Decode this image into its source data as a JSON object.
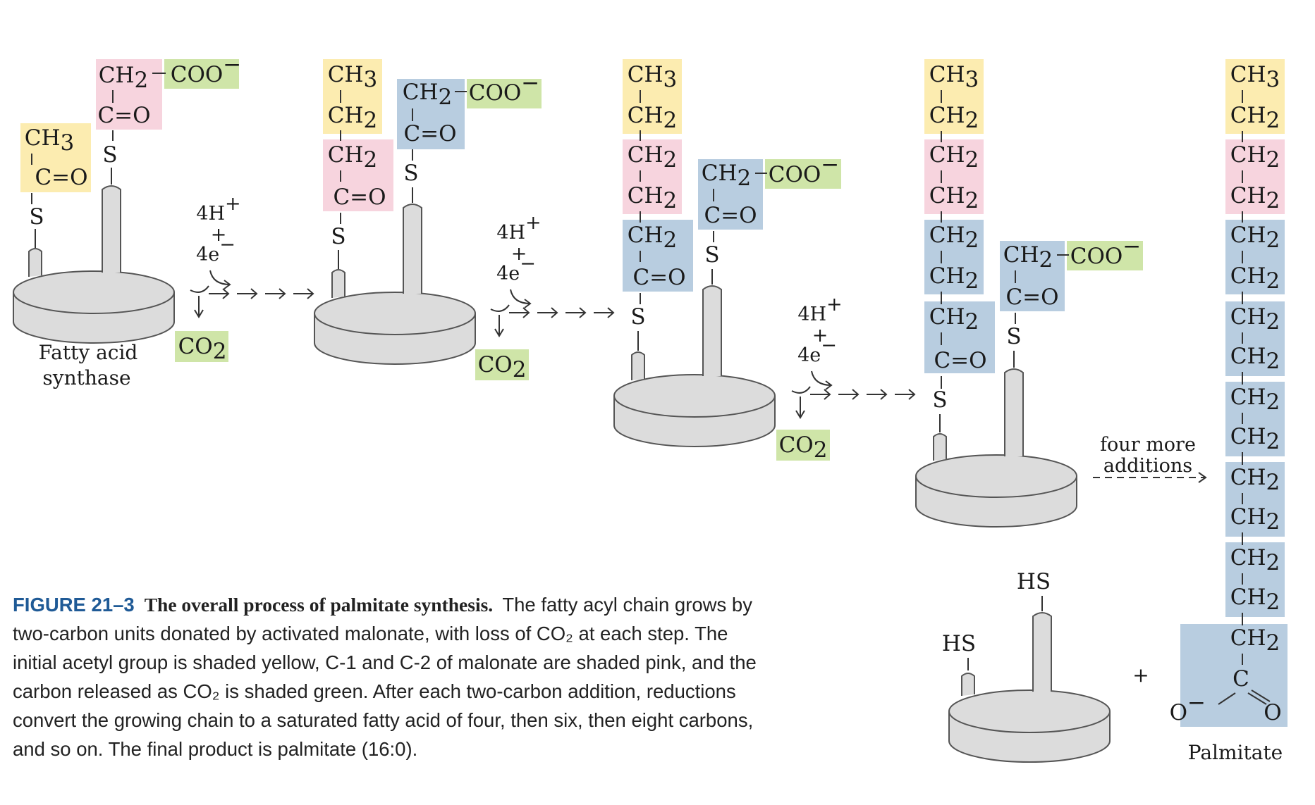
{
  "colors": {
    "acetyl": "#fcecb0",
    "malonate": "#f7d4de",
    "co2": "#cfe5a8",
    "reduced": "#b8cde0",
    "enzyme": "#dcdcdc",
    "figure_label": "#1f5a96"
  },
  "labels": {
    "ch3": "CH",
    "ch2": "CH",
    "co": "C",
    "o": "O",
    "coo": "COO",
    "s": "S",
    "hs": "HS",
    "h_plus": "4H",
    "plus": "+",
    "electrons": "4e",
    "co2": "CO",
    "sub2": "2",
    "sub3": "3",
    "minus": "−"
  },
  "enzyme_label": [
    "Fatty acid",
    "synthase"
  ],
  "four_more": [
    "four more",
    "additions"
  ],
  "product_name": "Palmitate",
  "product_plus": "+",
  "caption": {
    "figure": "FIGURE 21–3",
    "title": "The overall process of palmitate synthesis.",
    "body": "The fatty acyl chain grows by two-carbon units donated by activated malonate, with loss of CO₂ at each step. The initial acetyl group is shaded yellow, C-1 and C-2 of malonate are shaded pink, and the carbon released as CO₂ is shaded green. After each two-carbon addition, reductions convert the growing chain to a saturated fatty acid of four, then six, then eight carbons, and so on. The final product is palmitate (16:0)."
  }
}
